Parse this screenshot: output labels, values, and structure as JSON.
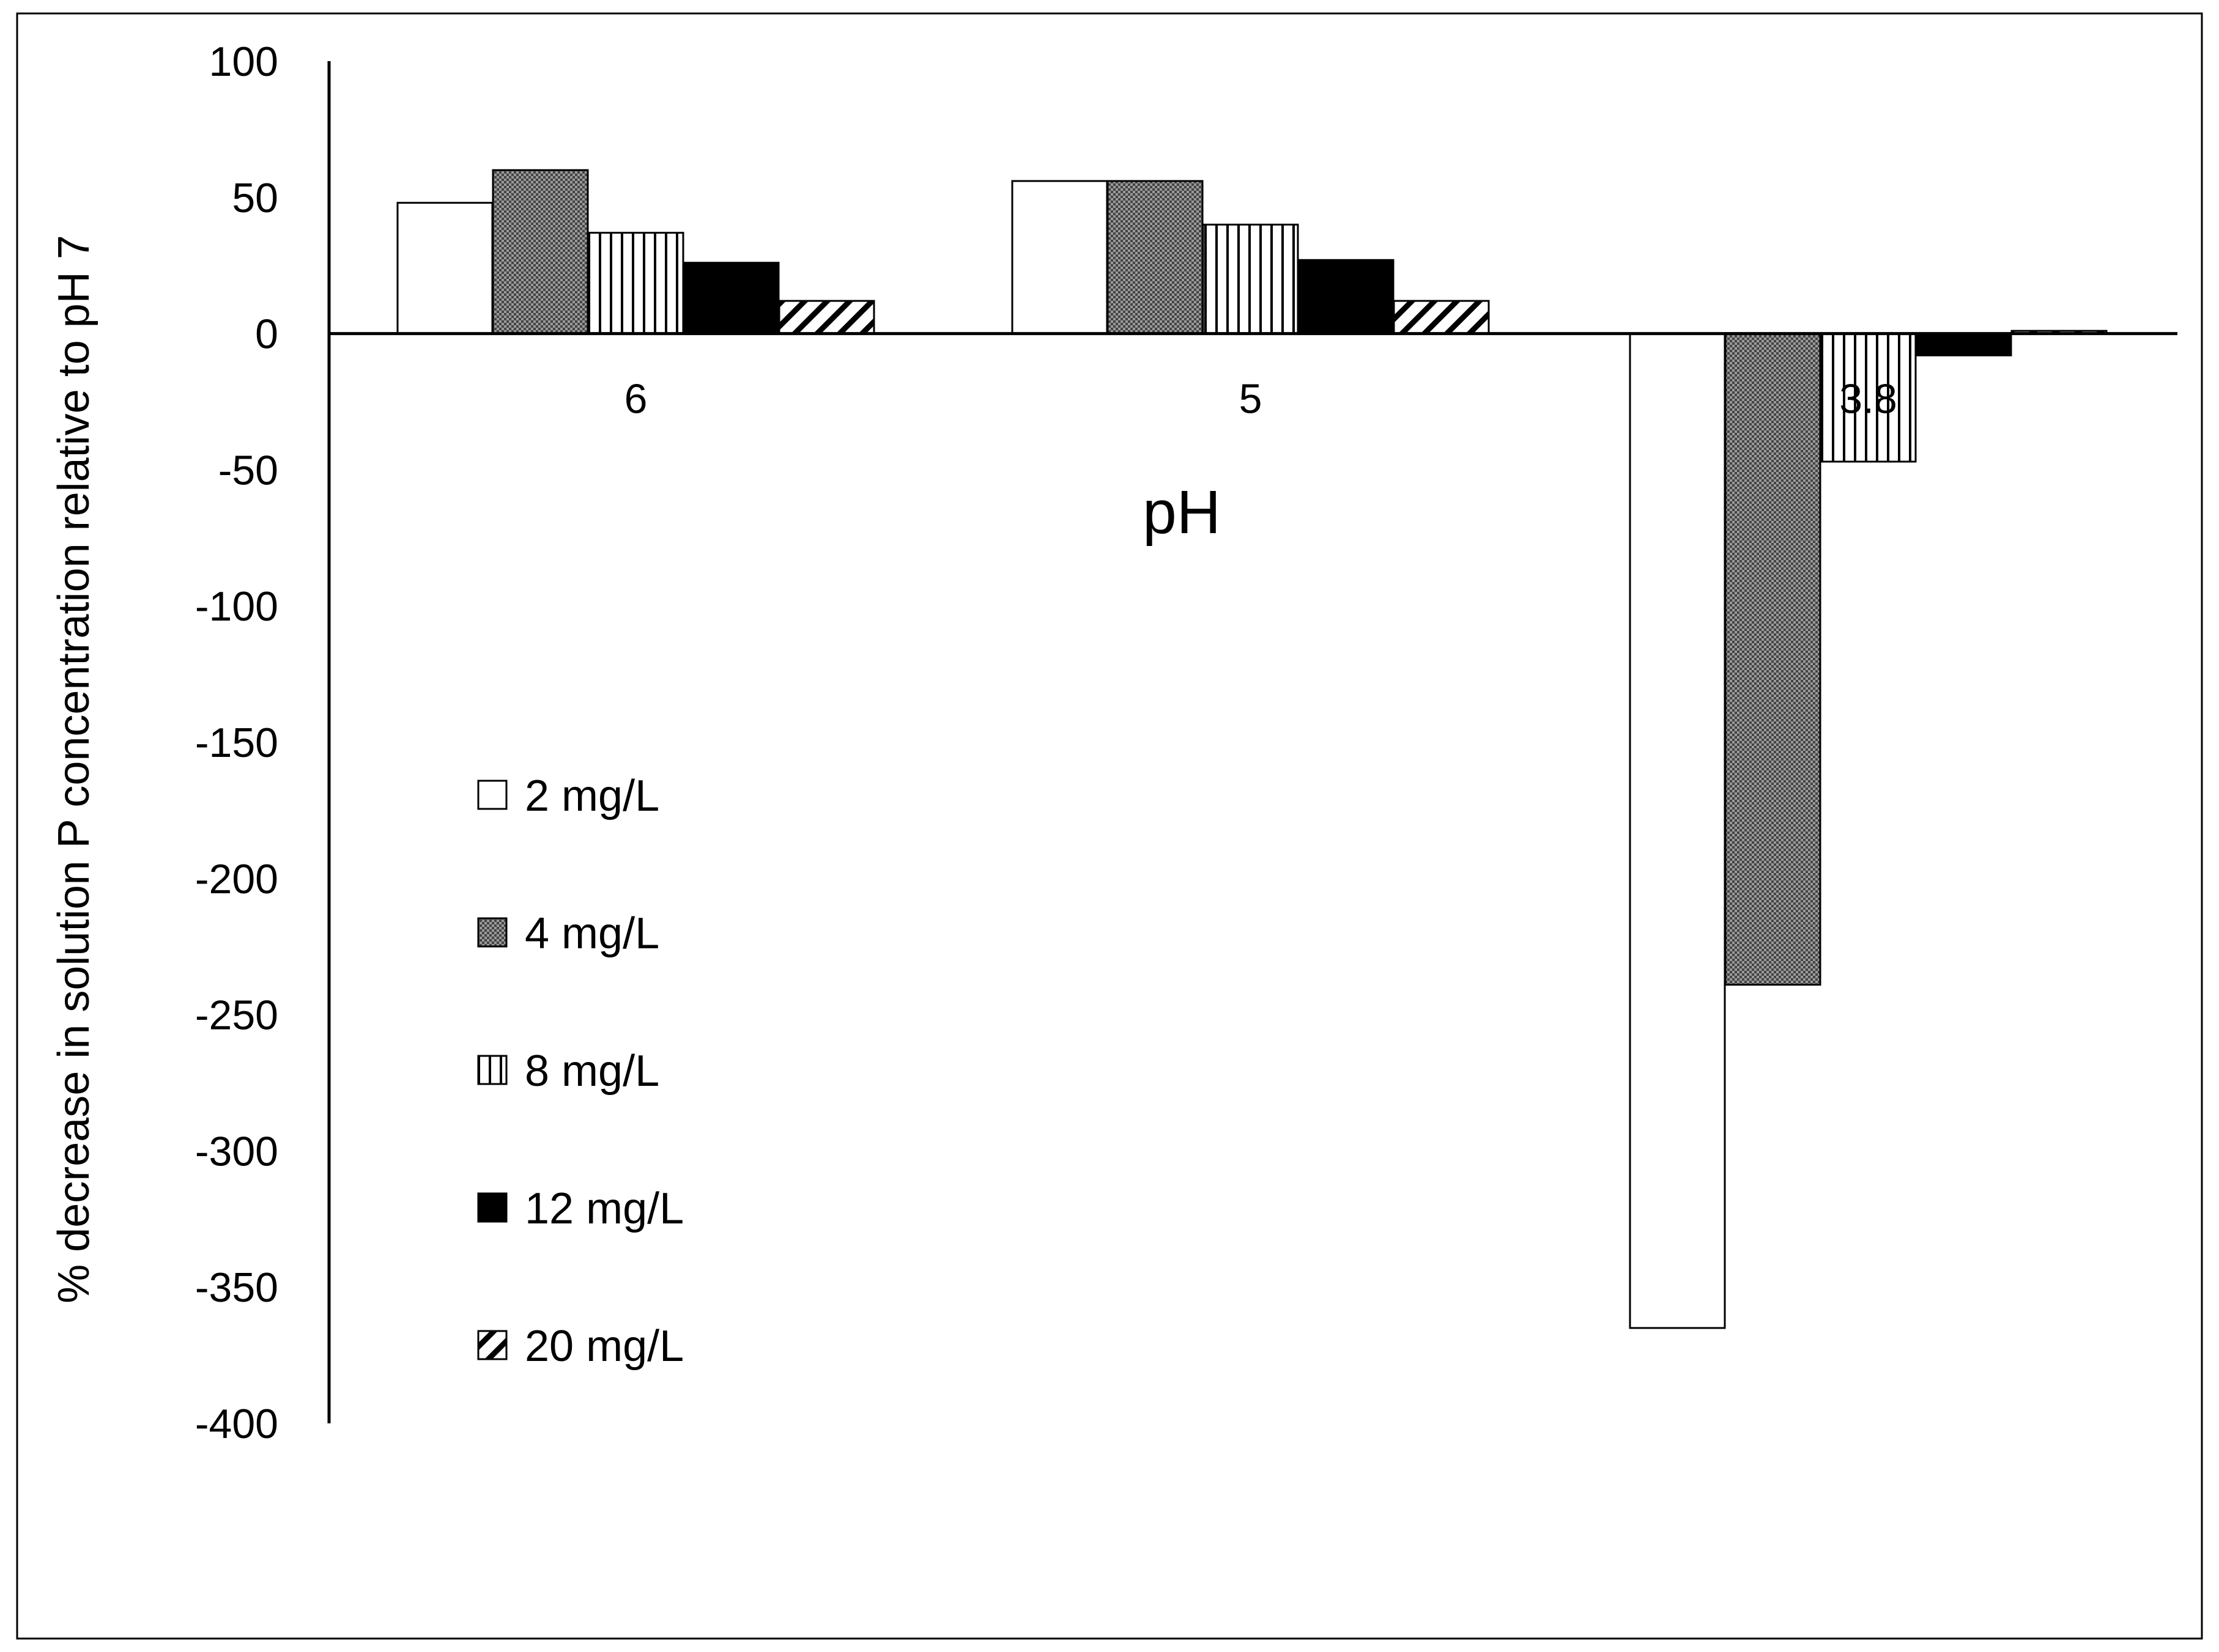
{
  "chart_data": {
    "type": "bar",
    "title": "",
    "xlabel": "pH",
    "ylabel": "% decrease in solution P concentration relative to pH 7",
    "categories": [
      "6",
      "5",
      "3.8"
    ],
    "ylim": [
      -400,
      100
    ],
    "yticks": [
      100,
      50,
      0,
      -50,
      -100,
      -150,
      -200,
      -250,
      -300,
      -350,
      -400
    ],
    "ytick_labels": [
      "100",
      "50",
      "0",
      "-50",
      "-100",
      "-150",
      "-200",
      "-250",
      "-300",
      "-350",
      "-400"
    ],
    "grid": false,
    "legend_position": "left",
    "series": [
      {
        "name": "2 mg/L",
        "pattern": "white",
        "values": [
          48,
          56,
          -365
        ]
      },
      {
        "name": "4 mg/L",
        "pattern": "dots",
        "values": [
          60,
          56,
          -239
        ]
      },
      {
        "name": "8 mg/L",
        "pattern": "vertical-lines",
        "values": [
          37,
          40,
          -47
        ]
      },
      {
        "name": "12 mg/L",
        "pattern": "solid-black",
        "values": [
          26,
          27,
          -8
        ]
      },
      {
        "name": "20 mg/L",
        "pattern": "diagonal-hatch",
        "values": [
          12,
          12,
          1
        ]
      }
    ]
  },
  "colors": {
    "axis": "#000000",
    "bar_fill_black": "#000000",
    "bar_fill_white": "#ffffff",
    "frame": "#000000"
  }
}
